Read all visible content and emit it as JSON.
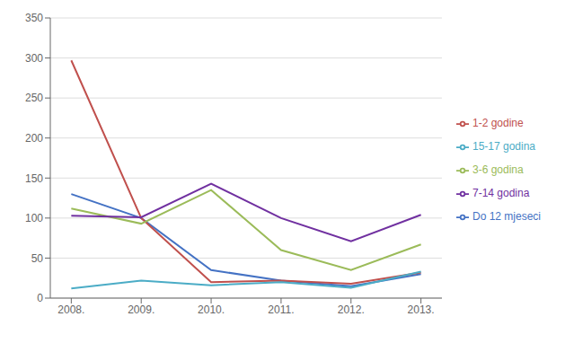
{
  "chart_data": {
    "type": "line",
    "x": [
      2008,
      2009,
      2010,
      2011,
      2012,
      2013
    ],
    "xlim": [
      2007.7,
      2013.3
    ],
    "xticks": [
      {
        "value": 2008,
        "label": "2008."
      },
      {
        "value": 2009,
        "label": "2009."
      },
      {
        "value": 2010,
        "label": "2010."
      },
      {
        "value": 2011,
        "label": "2011."
      },
      {
        "value": 2012,
        "label": "2012."
      },
      {
        "value": 2013,
        "label": "2013."
      }
    ],
    "ylim": [
      0,
      350
    ],
    "yticks": [
      0,
      50,
      100,
      150,
      200,
      250,
      300,
      350
    ],
    "grid": true,
    "legend": "right",
    "series": [
      {
        "name": "Do 12 mjeseci",
        "color": "#4472c4",
        "values": [
          130,
          100,
          35,
          22,
          15,
          30
        ]
      },
      {
        "name": "1-2 godine",
        "color": "#c0504d",
        "values": [
          297,
          100,
          20,
          22,
          18,
          32
        ]
      },
      {
        "name": "3-6 godina",
        "color": "#9bbb59",
        "values": [
          112,
          93,
          135,
          60,
          35,
          67
        ]
      },
      {
        "name": "7-14 godina",
        "color": "#7030a0",
        "values": [
          103,
          101,
          143,
          100,
          71,
          104
        ]
      },
      {
        "name": "15-17 godina",
        "color": "#4bacc6",
        "values": [
          12,
          22,
          16,
          20,
          13,
          33
        ]
      }
    ]
  }
}
